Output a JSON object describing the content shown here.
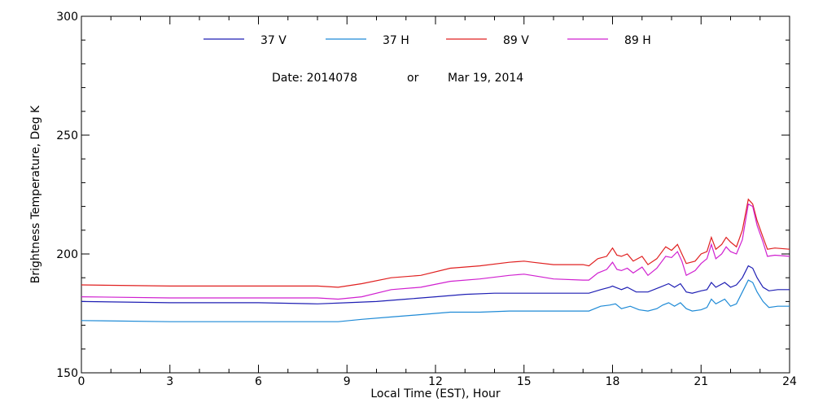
{
  "chart_data": {
    "type": "line",
    "xlabel": "Local Time (EST), Hour",
    "ylabel": "Brightness Temperature, Deg K",
    "xlim": [
      0,
      24
    ],
    "ylim": [
      150,
      300
    ],
    "xticks": [
      0,
      3,
      6,
      9,
      12,
      15,
      18,
      21,
      24
    ],
    "yticks": [
      150,
      200,
      250,
      300
    ],
    "grid": false,
    "legend_position": "top",
    "date_line": {
      "label": "Date: 2014078",
      "connector": "or",
      "date": "Mar 19, 2014"
    },
    "series": [
      {
        "name": "37 V",
        "color": "#1f1fb4",
        "points": [
          [
            0,
            180
          ],
          [
            3,
            179.5
          ],
          [
            6,
            179.5
          ],
          [
            8,
            179
          ],
          [
            9,
            179.5
          ],
          [
            10,
            180
          ],
          [
            11,
            181
          ],
          [
            12,
            182
          ],
          [
            13,
            183
          ],
          [
            14,
            183.5
          ],
          [
            15,
            183.5
          ],
          [
            16,
            183.5
          ],
          [
            17.2,
            183.5
          ],
          [
            17.6,
            185
          ],
          [
            17.9,
            186
          ],
          [
            18,
            186.5
          ],
          [
            18.1,
            186
          ],
          [
            18.3,
            185
          ],
          [
            18.5,
            186
          ],
          [
            18.8,
            184
          ],
          [
            19.2,
            184
          ],
          [
            19.6,
            186
          ],
          [
            19.9,
            187.5
          ],
          [
            20.1,
            186
          ],
          [
            20.3,
            187.5
          ],
          [
            20.5,
            184
          ],
          [
            20.7,
            183.5
          ],
          [
            21,
            184.5
          ],
          [
            21.2,
            185
          ],
          [
            21.35,
            188
          ],
          [
            21.5,
            186
          ],
          [
            21.8,
            188
          ],
          [
            22,
            186
          ],
          [
            22.2,
            187
          ],
          [
            22.4,
            190
          ],
          [
            22.6,
            195
          ],
          [
            22.75,
            194
          ],
          [
            22.9,
            190
          ],
          [
            23.1,
            186
          ],
          [
            23.3,
            184.5
          ],
          [
            23.6,
            185
          ],
          [
            24,
            185
          ]
        ]
      },
      {
        "name": "37 H",
        "color": "#1e8ad6",
        "points": [
          [
            0,
            172
          ],
          [
            3,
            171.5
          ],
          [
            6,
            171.5
          ],
          [
            8.7,
            171.5
          ],
          [
            9.5,
            172.5
          ],
          [
            10.5,
            173.5
          ],
          [
            11.5,
            174.5
          ],
          [
            12.5,
            175.5
          ],
          [
            13.5,
            175.5
          ],
          [
            14.5,
            176
          ],
          [
            15.5,
            176
          ],
          [
            17.2,
            176
          ],
          [
            17.6,
            178
          ],
          [
            17.9,
            178.5
          ],
          [
            18.1,
            179
          ],
          [
            18.3,
            177
          ],
          [
            18.6,
            178
          ],
          [
            18.9,
            176.5
          ],
          [
            19.2,
            176
          ],
          [
            19.5,
            177
          ],
          [
            19.7,
            178.5
          ],
          [
            19.9,
            179.5
          ],
          [
            20.1,
            178
          ],
          [
            20.3,
            179.5
          ],
          [
            20.5,
            177
          ],
          [
            20.7,
            176
          ],
          [
            21,
            176.5
          ],
          [
            21.2,
            177.5
          ],
          [
            21.35,
            181
          ],
          [
            21.5,
            179
          ],
          [
            21.8,
            181
          ],
          [
            22,
            178
          ],
          [
            22.2,
            179
          ],
          [
            22.4,
            184
          ],
          [
            22.6,
            189
          ],
          [
            22.75,
            188
          ],
          [
            22.9,
            184
          ],
          [
            23.1,
            180
          ],
          [
            23.3,
            177.5
          ],
          [
            23.6,
            178
          ],
          [
            24,
            178
          ]
        ]
      },
      {
        "name": "89 V",
        "color": "#e02020",
        "points": [
          [
            0,
            187
          ],
          [
            3,
            186.5
          ],
          [
            6,
            186.5
          ],
          [
            8,
            186.5
          ],
          [
            8.7,
            186
          ],
          [
            9.5,
            187.5
          ],
          [
            10.5,
            190
          ],
          [
            11.5,
            191
          ],
          [
            12.5,
            194
          ],
          [
            13.5,
            195
          ],
          [
            14.5,
            196.5
          ],
          [
            15,
            197
          ],
          [
            15.3,
            196.5
          ],
          [
            16,
            195.5
          ],
          [
            17,
            195.5
          ],
          [
            17.2,
            195
          ],
          [
            17.5,
            198
          ],
          [
            17.8,
            199
          ],
          [
            18,
            202.5
          ],
          [
            18.15,
            199.5
          ],
          [
            18.3,
            199
          ],
          [
            18.5,
            200
          ],
          [
            18.7,
            197
          ],
          [
            19,
            199
          ],
          [
            19.2,
            195.5
          ],
          [
            19.5,
            198
          ],
          [
            19.8,
            203
          ],
          [
            20,
            201.5
          ],
          [
            20.2,
            204
          ],
          [
            20.35,
            200
          ],
          [
            20.5,
            196
          ],
          [
            20.8,
            197
          ],
          [
            21,
            200
          ],
          [
            21.2,
            201
          ],
          [
            21.35,
            207
          ],
          [
            21.5,
            202
          ],
          [
            21.7,
            204
          ],
          [
            21.85,
            207
          ],
          [
            22,
            205
          ],
          [
            22.2,
            203
          ],
          [
            22.4,
            210
          ],
          [
            22.6,
            223
          ],
          [
            22.75,
            221
          ],
          [
            22.9,
            214
          ],
          [
            23.1,
            207
          ],
          [
            23.25,
            202
          ],
          [
            23.5,
            202.5
          ],
          [
            24,
            202
          ]
        ]
      },
      {
        "name": "89 H",
        "color": "#d020d0",
        "points": [
          [
            0,
            182
          ],
          [
            3,
            181.5
          ],
          [
            6,
            181.5
          ],
          [
            8,
            181.5
          ],
          [
            8.7,
            181
          ],
          [
            9.5,
            182
          ],
          [
            10.5,
            185
          ],
          [
            11.5,
            186
          ],
          [
            12.5,
            188.5
          ],
          [
            13.5,
            189.5
          ],
          [
            14.5,
            191
          ],
          [
            15,
            191.5
          ],
          [
            15.5,
            190.5
          ],
          [
            16,
            189.5
          ],
          [
            17,
            189
          ],
          [
            17.2,
            189
          ],
          [
            17.5,
            192
          ],
          [
            17.8,
            193.5
          ],
          [
            18,
            196.5
          ],
          [
            18.15,
            193.5
          ],
          [
            18.3,
            193
          ],
          [
            18.5,
            194
          ],
          [
            18.7,
            192
          ],
          [
            19,
            194.5
          ],
          [
            19.2,
            191
          ],
          [
            19.5,
            194
          ],
          [
            19.8,
            199
          ],
          [
            20,
            198.5
          ],
          [
            20.2,
            201
          ],
          [
            20.35,
            197
          ],
          [
            20.5,
            191
          ],
          [
            20.8,
            193
          ],
          [
            21,
            196
          ],
          [
            21.2,
            198
          ],
          [
            21.35,
            204
          ],
          [
            21.5,
            198
          ],
          [
            21.7,
            200
          ],
          [
            21.85,
            203
          ],
          [
            22,
            201
          ],
          [
            22.2,
            200
          ],
          [
            22.4,
            206
          ],
          [
            22.6,
            221
          ],
          [
            22.75,
            220
          ],
          [
            22.9,
            212
          ],
          [
            23.1,
            205
          ],
          [
            23.25,
            199
          ],
          [
            23.5,
            199.5
          ],
          [
            24,
            199
          ]
        ]
      }
    ]
  }
}
